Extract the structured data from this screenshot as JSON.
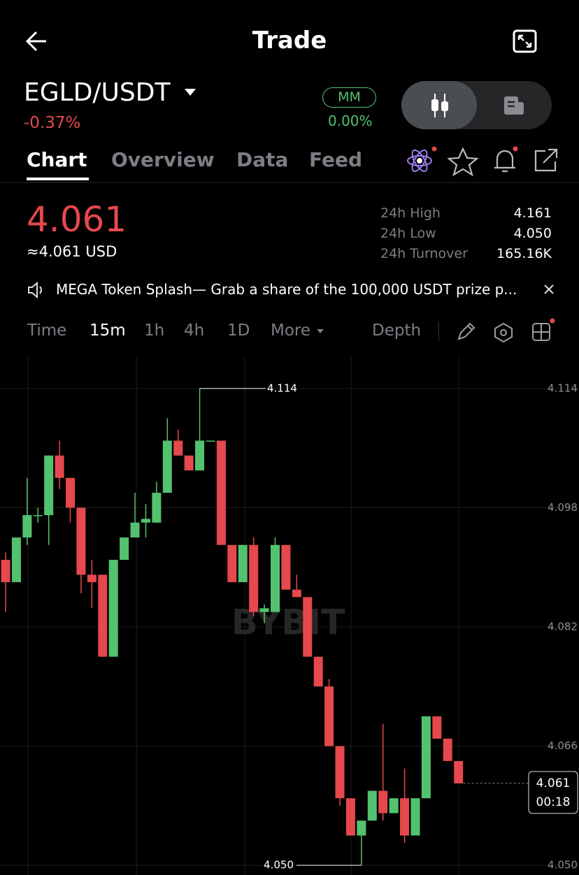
{
  "header": {
    "title": "Trade"
  },
  "pair": {
    "symbol": "EGLD/USDT",
    "change": "-0.37%",
    "badge": "MM",
    "badge_value": "0.00%"
  },
  "tabs": [
    "Chart",
    "Overview",
    "Data",
    "Feed"
  ],
  "price": {
    "last": "4.061",
    "usd": "≈4.061 USD"
  },
  "stats": [
    {
      "label": "24h High",
      "value": "4.161"
    },
    {
      "label": "24h Low",
      "value": "4.050"
    },
    {
      "label": "24h Turnover",
      "value": "165.16K"
    }
  ],
  "banner": "MEGA Token Splash— Grab  a share of the 100,000 USDT prize p...",
  "timeframes": [
    "Time",
    "15m",
    "1h",
    "4h",
    "1D",
    "More"
  ],
  "depth": "Depth",
  "chart_data": {
    "type": "candlestick",
    "watermark": "BYBIT",
    "open": [
      4.091,
      4.088,
      4.094,
      4.097,
      4.097,
      4.105,
      4.102,
      4.098,
      4.089,
      4.089,
      4.078,
      4.091,
      4.094,
      4.096,
      4.096,
      4.1,
      4.107,
      4.105,
      4.103,
      4.107,
      4.107,
      4.093,
      4.088,
      4.093,
      4.084,
      4.084,
      4.093,
      4.087,
      4.086,
      4.078,
      4.074,
      4.066,
      4.059,
      4.054,
      4.056,
      4.06,
      4.057,
      4.059,
      4.054,
      4.059,
      4.07,
      4.067,
      4.064
    ],
    "high": [
      4.092,
      4.094,
      4.102,
      4.098,
      4.105,
      4.107,
      4.102,
      4.098,
      4.091,
      4.089,
      4.091,
      4.094,
      4.1,
      4.0985,
      4.1015,
      4.11,
      4.1085,
      4.105,
      4.114,
      4.107,
      4.107,
      4.093,
      4.093,
      4.094,
      4.085,
      4.094,
      4.093,
      4.089,
      4.086,
      4.078,
      4.075,
      4.066,
      4.059,
      4.056,
      4.06,
      4.069,
      4.059,
      4.063,
      4.059,
      4.07,
      4.07,
      4.067,
      4.064
    ],
    "low": [
      4.084,
      4.088,
      4.093,
      4.096,
      4.093,
      4.1005,
      4.096,
      4.0865,
      4.0845,
      4.078,
      4.078,
      4.091,
      4.094,
      4.094,
      4.096,
      4.1,
      4.105,
      4.103,
      4.103,
      4.107,
      4.093,
      4.088,
      4.088,
      4.0835,
      4.0825,
      4.084,
      4.087,
      4.086,
      4.078,
      4.074,
      4.066,
      4.058,
      4.054,
      4.05,
      4.056,
      4.056,
      4.057,
      4.053,
      4.054,
      4.059,
      4.067,
      4.064,
      4.061
    ],
    "close": [
      4.088,
      4.094,
      4.097,
      4.097,
      4.105,
      4.102,
      4.098,
      4.089,
      4.088,
      4.078,
      4.091,
      4.094,
      4.096,
      4.0965,
      4.1,
      4.107,
      4.105,
      4.103,
      4.107,
      4.107,
      4.093,
      4.088,
      4.093,
      4.084,
      4.0845,
      4.093,
      4.087,
      4.086,
      4.078,
      4.074,
      4.066,
      4.059,
      4.054,
      4.056,
      4.06,
      4.057,
      4.059,
      4.054,
      4.059,
      4.07,
      4.067,
      4.064,
      4.061
    ],
    "up_color": "#53c26e",
    "down_color": "#e5484d",
    "ylim": [
      4.0487,
      4.1183
    ],
    "yticks": [
      4.114,
      4.098,
      4.082,
      4.066,
      {
        "value": 4.05,
        "label": "4.050"
      }
    ],
    "max_label": 4.114,
    "min_label": {
      "value": 4.05,
      "label": "4.050"
    },
    "last_price": 4.061,
    "countdown": "00:18"
  }
}
